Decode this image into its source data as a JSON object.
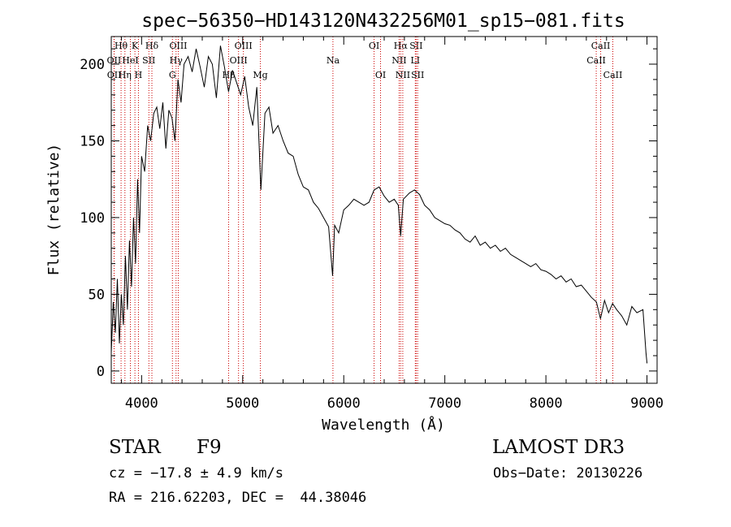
{
  "chart_data": {
    "type": "line",
    "title": "spec−56350−HD143120N432256M01_sp15−081.fits",
    "xlabel": "Wavelength (Å)",
    "ylabel": "Flux (relative)",
    "xlim": [
      3700,
      9100
    ],
    "ylim": [
      -8,
      218
    ],
    "xticks": [
      4000,
      5000,
      6000,
      7000,
      8000,
      9000
    ],
    "yticks": [
      0,
      50,
      100,
      150,
      200
    ],
    "grid": false,
    "line_color": "#000000",
    "marker_color": "#cc0000",
    "series": [
      {
        "name": "spectrum",
        "x": [
          3700,
          3720,
          3740,
          3760,
          3780,
          3800,
          3820,
          3840,
          3860,
          3880,
          3900,
          3920,
          3940,
          3960,
          3980,
          4000,
          4030,
          4060,
          4090,
          4120,
          4150,
          4180,
          4210,
          4240,
          4270,
          4300,
          4330,
          4360,
          4390,
          4420,
          4460,
          4500,
          4540,
          4580,
          4620,
          4660,
          4700,
          4740,
          4780,
          4820,
          4860,
          4900,
          4940,
          4980,
          5020,
          5060,
          5100,
          5140,
          5180,
          5220,
          5260,
          5300,
          5350,
          5400,
          5450,
          5500,
          5550,
          5600,
          5650,
          5700,
          5750,
          5800,
          5850,
          5890,
          5910,
          5950,
          6000,
          6050,
          6100,
          6150,
          6200,
          6250,
          6300,
          6350,
          6400,
          6450,
          6500,
          6540,
          6563,
          6590,
          6650,
          6700,
          6750,
          6800,
          6850,
          6900,
          6950,
          7000,
          7050,
          7100,
          7150,
          7200,
          7250,
          7300,
          7350,
          7400,
          7450,
          7500,
          7550,
          7600,
          7650,
          7700,
          7750,
          7800,
          7850,
          7900,
          7950,
          8000,
          8050,
          8100,
          8150,
          8200,
          8250,
          8300,
          8350,
          8400,
          8450,
          8500,
          8540,
          8580,
          8620,
          8660,
          8700,
          8750,
          8800,
          8850,
          8900,
          8960,
          8990,
          9000
        ],
        "y": [
          12,
          45,
          25,
          60,
          18,
          50,
          30,
          75,
          40,
          85,
          55,
          100,
          70,
          125,
          90,
          140,
          130,
          160,
          150,
          168,
          172,
          158,
          175,
          145,
          170,
          165,
          150,
          190,
          175,
          200,
          205,
          195,
          210,
          198,
          185,
          205,
          200,
          178,
          212,
          198,
          182,
          196,
          188,
          180,
          192,
          172,
          160,
          185,
          118,
          168,
          172,
          155,
          160,
          150,
          142,
          140,
          128,
          120,
          118,
          110,
          106,
          100,
          94,
          62,
          95,
          90,
          105,
          108,
          112,
          110,
          108,
          110,
          118,
          120,
          114,
          110,
          112,
          108,
          88,
          112,
          116,
          118,
          115,
          108,
          105,
          100,
          98,
          96,
          95,
          92,
          90,
          86,
          84,
          88,
          82,
          84,
          80,
          82,
          78,
          80,
          76,
          74,
          72,
          70,
          68,
          70,
          66,
          65,
          63,
          60,
          62,
          58,
          60,
          55,
          56,
          52,
          48,
          45,
          34,
          46,
          38,
          44,
          40,
          36,
          30,
          42,
          38,
          40,
          12,
          5
        ]
      }
    ],
    "lines_markers": [
      {
        "label": "Hθ",
        "wavelength": 3797,
        "row": 0
      },
      {
        "label": "OII",
        "wavelength": 3727,
        "row": 1
      },
      {
        "label": "OII",
        "wavelength": 3729,
        "row": 2
      },
      {
        "label": "HeI",
        "wavelength": 3889,
        "row": 1
      },
      {
        "label": "Hη",
        "wavelength": 3835,
        "row": 2
      },
      {
        "label": "K",
        "wavelength": 3934,
        "row": 0
      },
      {
        "label": "SII",
        "wavelength": 4072,
        "row": 1
      },
      {
        "label": "H",
        "wavelength": 3969,
        "row": 2
      },
      {
        "label": "Hδ",
        "wavelength": 4102,
        "row": 0
      },
      {
        "label": "OIII",
        "wavelength": 4363,
        "row": 0
      },
      {
        "label": "Hγ",
        "wavelength": 4341,
        "row": 1
      },
      {
        "label": "G",
        "wavelength": 4305,
        "row": 2
      },
      {
        "label": "OIII",
        "wavelength": 5007,
        "row": 0
      },
      {
        "label": "OIII",
        "wavelength": 4959,
        "row": 1
      },
      {
        "label": "Hβ",
        "wavelength": 4861,
        "row": 2
      },
      {
        "label": "Mg",
        "wavelength": 5175,
        "row": 2
      },
      {
        "label": "Na",
        "wavelength": 5893,
        "row": 1
      },
      {
        "label": "OI",
        "wavelength": 6300,
        "row": 0
      },
      {
        "label": "OI",
        "wavelength": 6364,
        "row": 2
      },
      {
        "label": "Hα",
        "wavelength": 6563,
        "row": 0
      },
      {
        "label": "SII",
        "wavelength": 6716,
        "row": 0
      },
      {
        "label": "NII",
        "wavelength": 6548,
        "row": 1
      },
      {
        "label": "LI",
        "wavelength": 6708,
        "row": 1
      },
      {
        "label": "NII",
        "wavelength": 6584,
        "row": 2
      },
      {
        "label": "SII",
        "wavelength": 6731,
        "row": 2
      },
      {
        "label": "CaII",
        "wavelength": 8542,
        "row": 0
      },
      {
        "label": "CaII",
        "wavelength": 8498,
        "row": 1
      },
      {
        "label": "CaII",
        "wavelength": 8662,
        "row": 2
      }
    ]
  },
  "info": {
    "object_class": "STAR",
    "subclass": "F9",
    "survey": "LAMOST DR3",
    "cz": "cz = −17.8 ± 4.9 km/s",
    "obs_date": "Obs−Date: 20130226",
    "coords": "RA = 216.62203, DEC =  44.38046"
  }
}
